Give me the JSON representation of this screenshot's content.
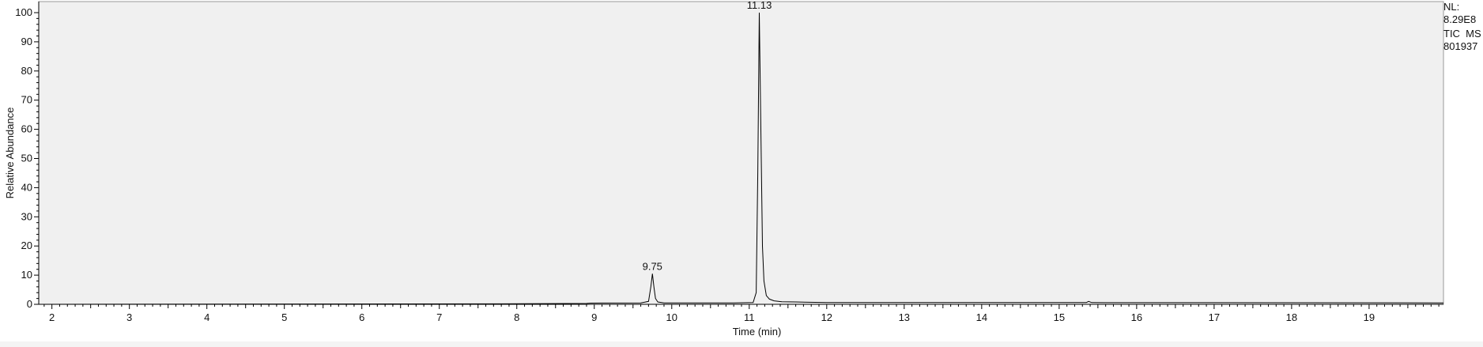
{
  "side_info": {
    "nl_label": "NL:",
    "nl_value": "8.29E8",
    "trace": "TIC  MS",
    "file": "801937"
  },
  "chart_data": {
    "type": "line",
    "title": "",
    "xlabel": "Time (min)",
    "ylabel": "Relative Abundance",
    "xlim": [
      1.83,
      19.96
    ],
    "ylim": [
      0,
      100
    ],
    "xticks": [
      2,
      3,
      4,
      5,
      6,
      7,
      8,
      9,
      10,
      11,
      12,
      13,
      14,
      15,
      16,
      17,
      18,
      19
    ],
    "yticks": [
      0,
      10,
      20,
      30,
      40,
      50,
      60,
      70,
      80,
      90,
      100
    ],
    "grid": false,
    "colors": {
      "plot_bg": "#f0f0f0",
      "line": "#000000",
      "axis": "#000000"
    },
    "peak_labels": [
      {
        "x": 9.75,
        "y": 10.5,
        "label": "9.75"
      },
      {
        "x": 11.13,
        "y": 100,
        "label": "11.13"
      }
    ],
    "series": [
      {
        "x": [
          1.83,
          8.1,
          8.9,
          8.95,
          9.6,
          9.7,
          9.73,
          9.75,
          9.77,
          9.79,
          9.82,
          9.9,
          10.8,
          11.05,
          11.09,
          11.11,
          11.13,
          11.15,
          11.17,
          11.19,
          11.22,
          11.26,
          11.32,
          11.42,
          11.6,
          12.0,
          15.35,
          15.38,
          15.42,
          19.96
        ],
        "y": [
          0,
          0.2,
          0.3,
          0.4,
          0.5,
          1.0,
          6.0,
          10.5,
          6.0,
          2.0,
          0.8,
          0.5,
          0.5,
          0.6,
          4.0,
          45.0,
          100.0,
          60.0,
          20.0,
          8.0,
          3.0,
          1.8,
          1.2,
          0.9,
          0.8,
          0.6,
          0.6,
          1.0,
          0.6,
          0.5
        ]
      }
    ]
  }
}
